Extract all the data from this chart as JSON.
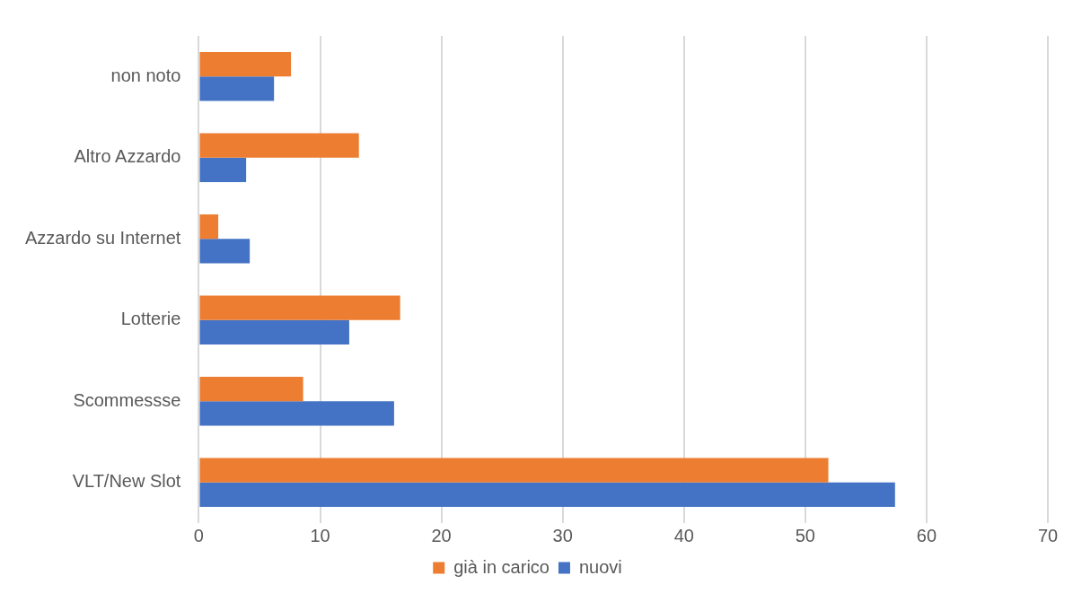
{
  "chart_data": {
    "type": "bar",
    "orientation": "horizontal",
    "categories": [
      "non noto",
      "Altro Azzardo",
      "Azzardo su Internet",
      "Lotterie",
      "Scommessse",
      "VLT/New Slot"
    ],
    "series": [
      {
        "name": "già in carico",
        "color": "#ed7d31",
        "values": [
          7.6,
          13.2,
          1.6,
          16.6,
          8.6,
          51.9
        ]
      },
      {
        "name": "nuovi",
        "color": "#4472c4",
        "values": [
          6.2,
          3.9,
          4.2,
          12.4,
          16.1,
          57.4
        ]
      }
    ],
    "xlim": [
      0,
      70
    ],
    "xticks": [
      0,
      10,
      20,
      30,
      40,
      50,
      60,
      70
    ],
    "grid": "x",
    "legend": "bottom"
  }
}
